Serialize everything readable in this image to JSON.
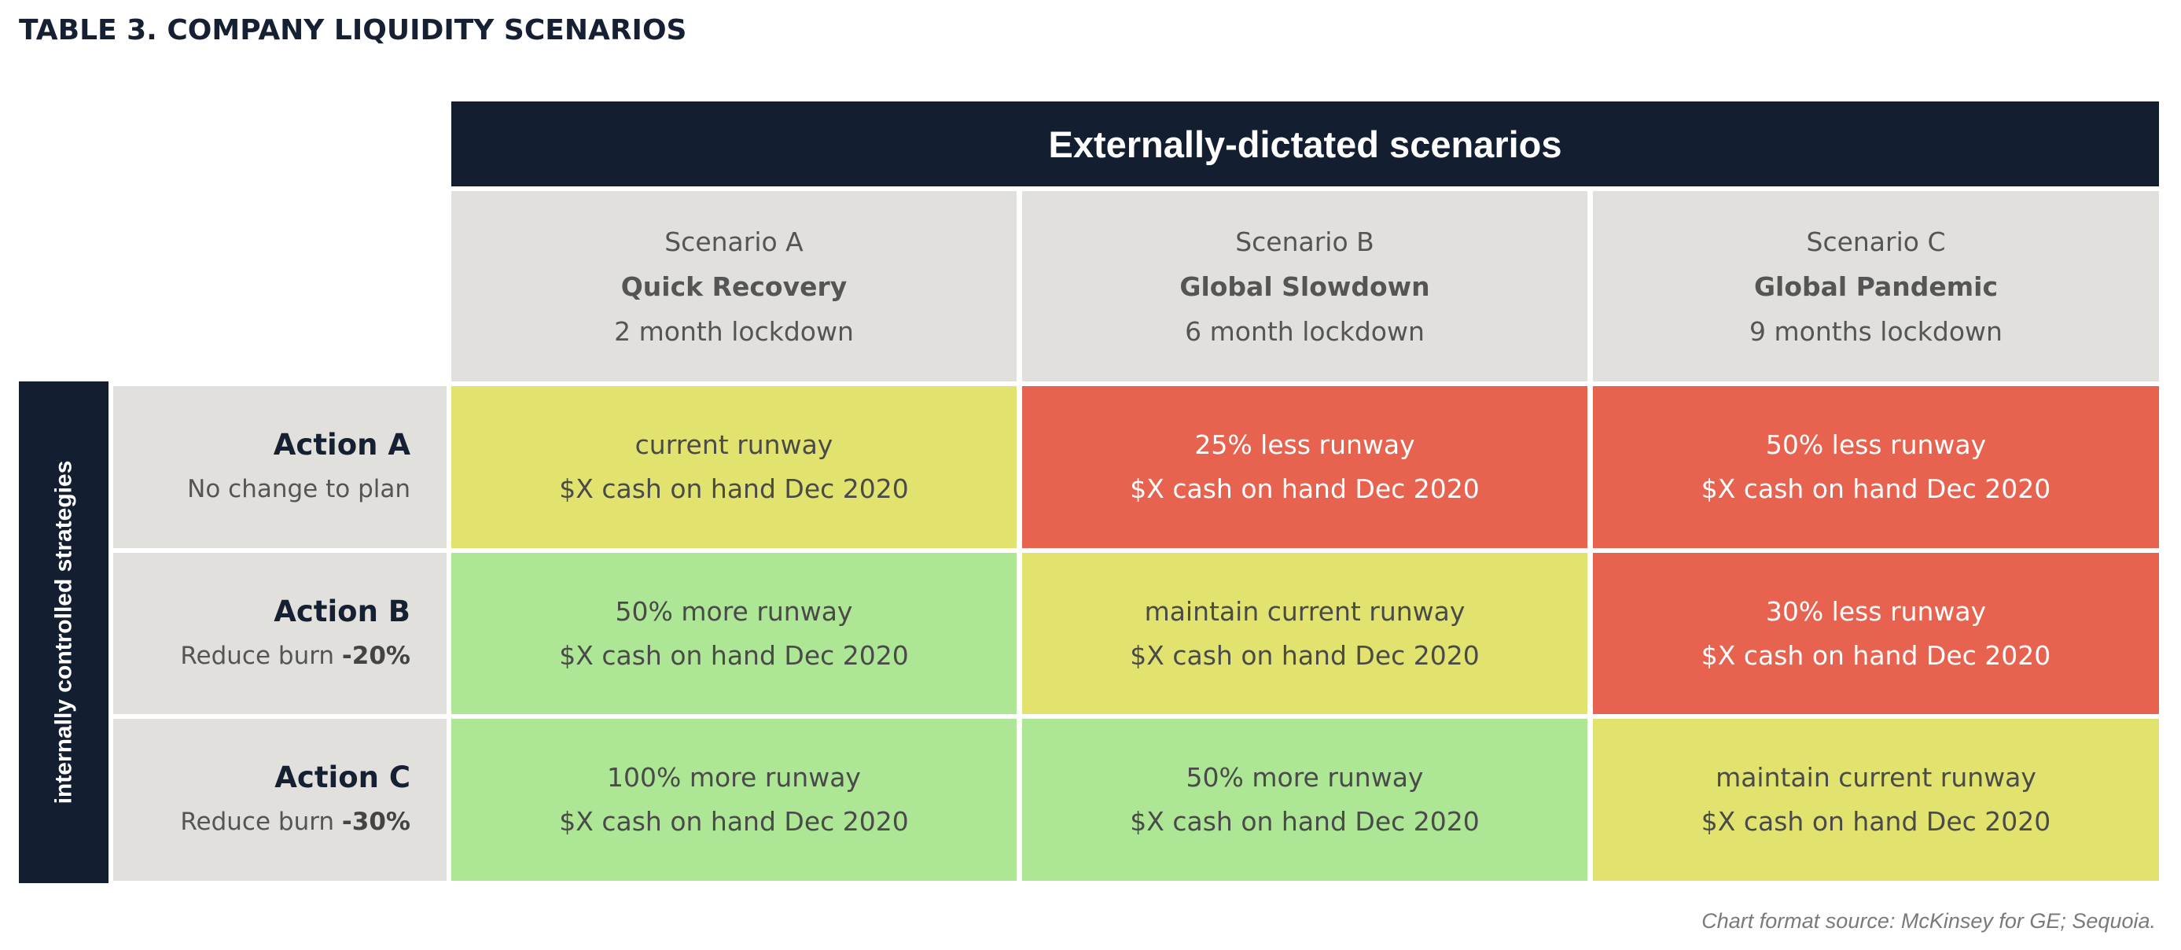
{
  "title": "TABLE 3. COMPANY LIQUIDITY SCENARIOS",
  "top_header": "Externally-dictated scenarios",
  "side_header": "internally controlled strategies",
  "source": "Chart format source: McKinsey for GE; Sequoia.",
  "colors": {
    "navy": "#131f31",
    "header_gray": "#e1e0dc",
    "yellow": "#e2e36e",
    "red": "#e8634f",
    "green": "#ade694"
  },
  "scenarios": [
    {
      "label": "Scenario A",
      "name": "Quick Recovery",
      "lockdown": "2 month lockdown"
    },
    {
      "label": "Scenario B",
      "name": "Global Slowdown",
      "lockdown": "6 month lockdown"
    },
    {
      "label": "Scenario C",
      "name": "Global Pandemic",
      "lockdown": "9 months lockdown"
    }
  ],
  "actions": [
    {
      "name": "Action A",
      "desc": "No change to plan",
      "desc_bold": ""
    },
    {
      "name": "Action B",
      "desc": "Reduce burn ",
      "desc_bold": "-20%"
    },
    {
      "name": "Action C",
      "desc": "Reduce burn ",
      "desc_bold": "-30%"
    }
  ],
  "cells": [
    [
      {
        "outcome": "current runway",
        "cash": "$X cash on hand Dec 2020",
        "color": "yellow"
      },
      {
        "outcome": "25% less runway",
        "cash": "$X cash on hand Dec 2020",
        "color": "red"
      },
      {
        "outcome": "50% less runway",
        "cash": "$X cash on hand Dec 2020",
        "color": "red"
      }
    ],
    [
      {
        "outcome": "50% more runway",
        "cash": "$X cash on hand Dec 2020",
        "color": "green"
      },
      {
        "outcome": "maintain current runway",
        "cash": "$X cash on hand Dec 2020",
        "color": "yellow"
      },
      {
        "outcome": "30% less runway",
        "cash": "$X cash on hand Dec 2020",
        "color": "red"
      }
    ],
    [
      {
        "outcome": "100% more runway",
        "cash": "$X cash on hand Dec 2020",
        "color": "green"
      },
      {
        "outcome": "50% more runway",
        "cash": "$X cash on hand Dec 2020",
        "color": "green"
      },
      {
        "outcome": "maintain current runway",
        "cash": "$X cash on hand Dec 2020",
        "color": "yellow"
      }
    ]
  ],
  "chart_data": {
    "type": "table",
    "title": "TABLE 3. COMPANY LIQUIDITY SCENARIOS",
    "column_group": "Externally-dictated scenarios",
    "row_group": "internally controlled strategies",
    "columns": [
      "Scenario A Quick Recovery 2 month lockdown",
      "Scenario B Global Slowdown 6 month lockdown",
      "Scenario C Global Pandemic 9 months lockdown"
    ],
    "rows": [
      "Action A No change to plan",
      "Action B Reduce burn -20%",
      "Action C Reduce burn -30%"
    ],
    "values": [
      [
        "current runway",
        "25% less runway",
        "50% less runway"
      ],
      [
        "50% more runway",
        "maintain current runway",
        "30% less runway"
      ],
      [
        "100% more runway",
        "50% more runway",
        "maintain current runway"
      ]
    ],
    "cell_colors": [
      [
        "yellow",
        "red",
        "red"
      ],
      [
        "green",
        "yellow",
        "red"
      ],
      [
        "green",
        "green",
        "yellow"
      ]
    ]
  }
}
